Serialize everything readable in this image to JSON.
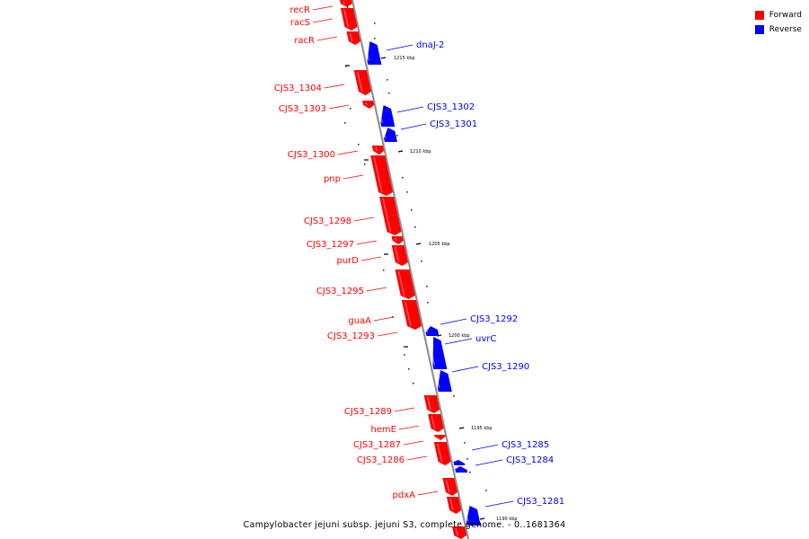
{
  "legend": [
    {
      "label": "Forward",
      "color": "#ff0000"
    },
    {
      "label": "Reverse",
      "color": "#0000ff"
    }
  ],
  "caption": "Campylobacter jejuni subsp. jejuni S3, complete genome. - 0..1681364",
  "colors": {
    "forward": "#ff0000",
    "reverse": "#0000ff",
    "backbone": "#999999"
  },
  "kbp_ticks": [
    "1215 kbp",
    "1210 kbp",
    "1205 kbp",
    "1200 kbp",
    "1195 kbp",
    "1190 kbp"
  ],
  "forward_genes": [
    "recR",
    "racS",
    "racR",
    "CJS3_1304",
    "CJS3_1303",
    "CJS3_1300",
    "pnp",
    "CJS3_1298",
    "CJS3_1297",
    "purD",
    "CJS3_1295",
    "guaA",
    "CJS3_1293",
    "CJS3_1289",
    "hemE",
    "CJS3_1287",
    "CJS3_1286",
    "pdxA"
  ],
  "reverse_genes": [
    "dnaJ-2",
    "CJS3_1302",
    "CJS3_1301",
    "CJS3_1292",
    "uvrC",
    "CJS3_1290",
    "CJS3_1285",
    "CJS3_1284",
    "CJS3_1281"
  ]
}
